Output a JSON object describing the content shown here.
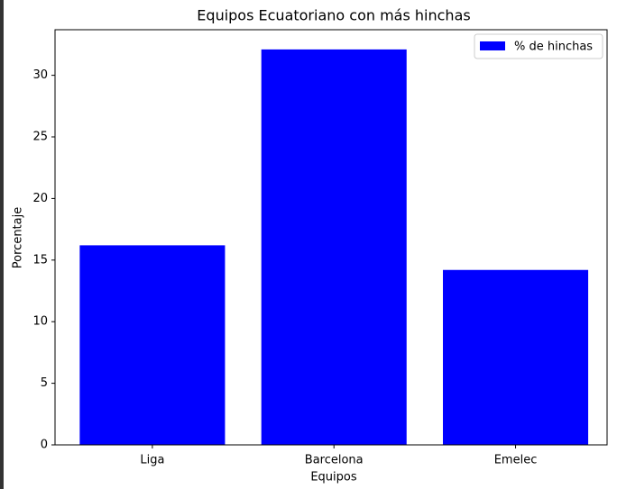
{
  "chart_data": {
    "type": "bar",
    "title": "Equipos Ecuatoriano con más hinchas",
    "x_label": "Equipos",
    "y_label": "Porcentaje",
    "categories": [
      "Liga",
      "Barcelona",
      "Emelec"
    ],
    "series": [
      {
        "name": "% de hinchas",
        "color": "#0000ff",
        "values": [
          16.2,
          32.1,
          14.2
        ]
      }
    ],
    "ylim": [
      0,
      33.7
    ],
    "yticks": [
      0,
      5,
      10,
      15,
      20,
      25,
      30
    ],
    "legend": "upper right",
    "grid": false
  }
}
